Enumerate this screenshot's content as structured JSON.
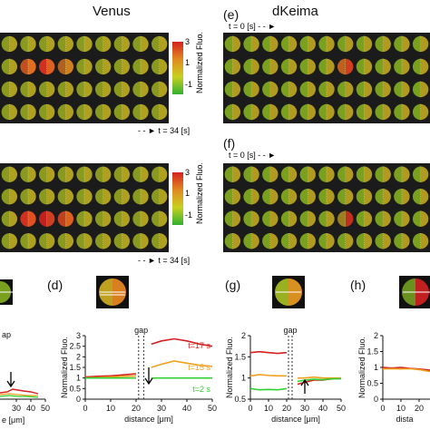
{
  "figure": {
    "left_title": "Venus",
    "right_title": "dKeima",
    "labels": {
      "d": "(d)",
      "e": "(e)",
      "f": "(f)",
      "g": "(g)",
      "h": "(h)"
    },
    "time_start": "t = 0 [s]",
    "time_end": "t = 34 [s]",
    "colorbar": {
      "label": "Normalized Fluo.",
      "ticks": [
        "3",
        "1",
        "-1"
      ]
    }
  },
  "panel_c": {
    "xticks": [
      "30",
      "40",
      "50"
    ],
    "partial_text": "ap",
    "xlabel_partial": "e [μm]"
  },
  "panel_d": {
    "gap_label": "gap",
    "ylabel": "Normalized Fluo.",
    "yticks": [
      "0",
      "0.5",
      "1",
      "1.5",
      "2",
      "2.5",
      "3"
    ],
    "xticks": [
      "0",
      "10",
      "20",
      "30",
      "40",
      "50"
    ],
    "xlabel": "distance [μm]",
    "legend": [
      "t=17 s",
      "t=15 s",
      "t=2 s"
    ]
  },
  "panel_g": {
    "gap_label": "gap",
    "ylabel": "Normalized Fluo.",
    "yticks": [
      "0.5",
      "1",
      "1.5",
      "2"
    ],
    "xticks": [
      "0",
      "10",
      "20",
      "30",
      "40",
      "50"
    ],
    "xlabel": "distance [μm]"
  },
  "panel_h": {
    "ylabel": "Normalized Fluo.",
    "yticks": [
      "0",
      "0.5",
      "1",
      "1.5",
      "2"
    ],
    "xticks": [
      "0",
      "10",
      "20",
      "30"
    ],
    "xlabel_partial": "dista"
  },
  "colors": {
    "red": "#d42020",
    "orange": "#f0a020",
    "green": "#30d030"
  },
  "chart_data": [
    {
      "type": "line",
      "panel": "d",
      "x": [
        0,
        5,
        10,
        15,
        20,
        26,
        30,
        35,
        40,
        45,
        50
      ],
      "series": [
        {
          "name": "t=17 s",
          "values": [
            1.05,
            1.08,
            1.1,
            1.15,
            1.2,
            2.6,
            2.75,
            2.85,
            2.75,
            2.6,
            2.5
          ]
        },
        {
          "name": "t=15 s",
          "values": [
            1.0,
            1.02,
            1.05,
            1.08,
            1.1,
            1.5,
            1.65,
            1.8,
            1.7,
            1.6,
            1.55
          ]
        },
        {
          "name": "t=2 s",
          "values": [
            1.0,
            1.0,
            1.0,
            1.0,
            1.0,
            1.0,
            1.0,
            1.0,
            1.0,
            1.0,
            1.0
          ]
        }
      ],
      "xlabel": "distance [μm]",
      "ylabel": "Normalized Fluo.",
      "xlim": [
        0,
        50
      ],
      "ylim": [
        0,
        3
      ]
    },
    {
      "type": "line",
      "panel": "g",
      "x": [
        0,
        5,
        10,
        15,
        20,
        26,
        30,
        35,
        40,
        45,
        50
      ],
      "series": [
        {
          "values": [
            1.6,
            1.62,
            1.6,
            1.58,
            1.6,
            0.85,
            0.9,
            0.95,
            0.95,
            0.98,
            1.0
          ]
        },
        {
          "values": [
            1.05,
            1.08,
            1.06,
            1.05,
            1.05,
            1.0,
            1.0,
            1.02,
            1.0,
            1.0,
            1.0
          ]
        },
        {
          "values": [
            0.75,
            0.72,
            0.73,
            0.72,
            0.75,
            0.92,
            0.95,
            0.97,
            0.96,
            0.98,
            0.98
          ]
        }
      ],
      "xlabel": "distance [μm]",
      "ylabel": "Normalized Fluo.",
      "xlim": [
        0,
        50
      ],
      "ylim": [
        0.5,
        2
      ]
    },
    {
      "type": "line",
      "panel": "h",
      "x": [
        0,
        5,
        10,
        15,
        20,
        25,
        30
      ],
      "series": [
        {
          "values": [
            1.0,
            0.98,
            1.0,
            0.97,
            0.95,
            0.92,
            0.9
          ]
        },
        {
          "values": [
            0.95,
            0.96,
            0.95,
            0.96,
            0.93,
            0.88,
            0.85
          ]
        }
      ],
      "ylabel": "Normalized Fluo.",
      "xlim": [
        0,
        50
      ],
      "ylim": [
        0,
        2
      ]
    }
  ]
}
